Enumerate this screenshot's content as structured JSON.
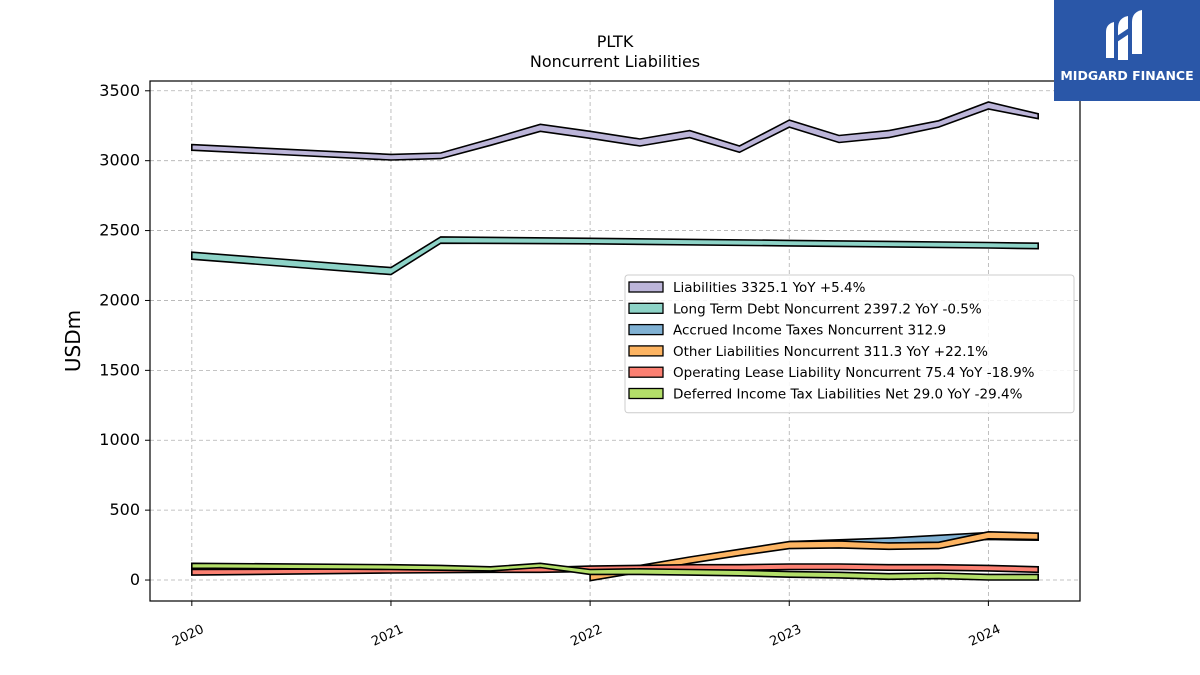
{
  "brand": {
    "name": "MIDGARD FINANCE",
    "bg_color": "#2a57a8"
  },
  "chart_data": {
    "type": "area",
    "title": "PLTK",
    "subtitle": "Noncurrent  Liabilities",
    "ylabel": "USDm",
    "xlabel": "",
    "ylim": [
      -150,
      3570
    ],
    "xlim": [
      2019.79,
      2024.46
    ],
    "yticks": [
      0,
      500,
      1000,
      1500,
      2000,
      2500,
      3000,
      3500
    ],
    "xticks": [
      {
        "value": 2020.0,
        "label": "2020"
      },
      {
        "value": 2021.0,
        "label": "2021"
      },
      {
        "value": 2022.0,
        "label": "2022"
      },
      {
        "value": 2023.0,
        "label": "2023"
      },
      {
        "value": 2024.0,
        "label": "2024"
      }
    ],
    "grid": true,
    "legend_position": "center-right",
    "series": [
      {
        "name": "Liabilities",
        "legend": "Liabilities  3325.1 YoY +5.4%",
        "color": "#bcb5d9",
        "x": [
          2020.0,
          2021.0,
          2021.25,
          2021.5,
          2021.75,
          2022.0,
          2022.25,
          2022.5,
          2022.75,
          2023.0,
          2023.25,
          2023.5,
          2023.75,
          2024.0,
          2024.25
        ],
        "upper": [
          3115,
          3045,
          3055,
          3155,
          3260,
          3210,
          3155,
          3215,
          3105,
          3290,
          3180,
          3215,
          3285,
          3420,
          3335
        ],
        "lower": [
          3075,
          3005,
          3015,
          3110,
          3210,
          3160,
          3105,
          3165,
          3060,
          3240,
          3130,
          3165,
          3240,
          3370,
          3300
        ]
      },
      {
        "name": "Long Term Debt Noncurrent",
        "legend": "Long Term Debt Noncurrent  2397.2 YoY -0.5%",
        "color": "#8dd3c7",
        "x": [
          2020.0,
          2021.0,
          2021.25,
          2022.0,
          2023.0,
          2024.0,
          2024.25
        ],
        "upper": [
          2345,
          2235,
          2455,
          2445,
          2430,
          2415,
          2410
        ],
        "lower": [
          2295,
          2185,
          2410,
          2405,
          2390,
          2375,
          2370
        ]
      },
      {
        "name": "Accrued Income Taxes Noncurrent",
        "legend": "Accrued Income Taxes Noncurrent  312.9",
        "color": "#80b1d3",
        "x": [
          2023.0,
          2023.5,
          2023.75,
          2024.0,
          2024.25
        ],
        "upper": [
          275,
          300,
          320,
          340,
          330
        ],
        "lower": [
          265,
          265,
          270,
          290,
          285
        ]
      },
      {
        "name": "Other Liabilities Noncurrent",
        "legend": "Other Liabilities Noncurrent  311.3 YoY +22.1%",
        "color": "#fdb462",
        "x": [
          2022.0,
          2022.25,
          2022.5,
          2022.75,
          2023.0,
          2023.25,
          2023.5,
          2023.75,
          2024.0,
          2024.25
        ],
        "upper": [
          65,
          105,
          165,
          220,
          275,
          280,
          265,
          270,
          345,
          335
        ],
        "lower": [
          -5,
          55,
          120,
          175,
          225,
          230,
          220,
          225,
          295,
          290
        ]
      },
      {
        "name": "Operating Lease Liability Noncurrent",
        "legend": "Operating Lease Liability Noncurrent  75.4 YoY -18.9%",
        "color": "#fb8072",
        "x": [
          2020.0,
          2021.0,
          2021.5,
          2021.75,
          2022.0,
          2022.25,
          2022.5,
          2022.75,
          2023.0,
          2023.25,
          2023.5,
          2023.75,
          2024.0,
          2024.25
        ],
        "upper": [
          75,
          80,
          85,
          90,
          100,
          105,
          110,
          110,
          115,
          115,
          110,
          110,
          105,
          95
        ],
        "lower": [
          35,
          50,
          55,
          55,
          60,
          65,
          70,
          70,
          75,
          75,
          70,
          70,
          65,
          55
        ]
      },
      {
        "name": "Deferred Income Tax Liabilities Net",
        "legend": "Deferred Income Tax Liabilities Net  29.0 YoY -29.4%",
        "color": "#b3de69",
        "x": [
          2020.0,
          2021.0,
          2021.25,
          2021.5,
          2021.75,
          2022.0,
          2022.25,
          2022.5,
          2022.75,
          2023.0,
          2023.25,
          2023.5,
          2023.75,
          2024.0,
          2024.25
        ],
        "upper": [
          120,
          110,
          105,
          95,
          120,
          75,
          80,
          75,
          70,
          60,
          55,
          45,
          50,
          40,
          40
        ],
        "lower": [
          85,
          75,
          70,
          65,
          90,
          40,
          40,
          35,
          30,
          20,
          15,
          5,
          10,
          0,
          0
        ]
      }
    ]
  }
}
